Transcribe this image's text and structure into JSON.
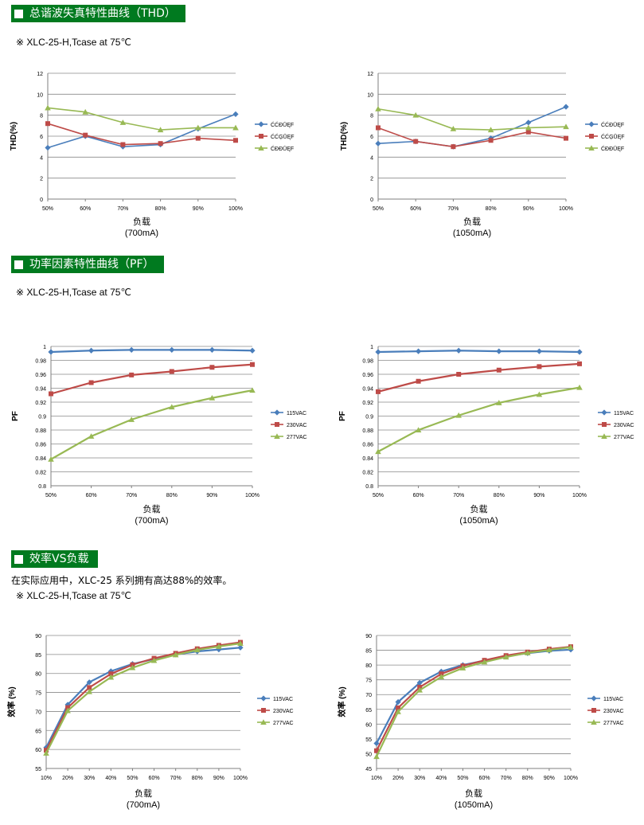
{
  "sections": [
    {
      "title": "总谐波失真特性曲线（THD）",
      "note": "※ XLC-25-H,Tcase at 75℃"
    },
    {
      "title": "功率因素特性曲线（PF）",
      "note": "※ XLC-25-H,Tcase at 75℃"
    },
    {
      "title": "效率VS负载",
      "intro": "在实际应用中，XLC-25 系列拥有高达88%的效率。",
      "note": "※ XLC-25-H,Tcase at 75℃"
    }
  ],
  "chart_data": [
    {
      "type": "line",
      "title": "",
      "ylabel": "THD(%)",
      "xlabel": "负载",
      "xlabel2": "(700mA)",
      "categories": [
        "50%",
        "60%",
        "70%",
        "80%",
        "90%",
        "100%"
      ],
      "ylim": [
        0,
        12
      ],
      "yticks": [
        "0",
        "2",
        "4",
        "6",
        "8",
        "10",
        "12"
      ],
      "grid": true,
      "legend": "right",
      "series": [
        {
          "name": "ĆĆĐŪĘF",
          "color": "#4a7ebb",
          "marker": "diamond",
          "values": [
            4.9,
            6.0,
            5.0,
            5.2,
            6.7,
            8.1
          ]
        },
        {
          "name": "ĆĆĢŪĘF",
          "color": "#be4b48",
          "marker": "square",
          "values": [
            7.2,
            6.1,
            5.2,
            5.3,
            5.8,
            5.6
          ]
        },
        {
          "name": "ĆĐĐŪĘF",
          "color": "#98b954",
          "marker": "triangle",
          "values": [
            8.7,
            8.3,
            7.3,
            6.6,
            6.8,
            6.8
          ]
        }
      ]
    },
    {
      "type": "line",
      "title": "",
      "ylabel": "THD(%)",
      "xlabel": "负载",
      "xlabel2": "(1050mA)",
      "categories": [
        "50%",
        "60%",
        "70%",
        "80%",
        "90%",
        "100%"
      ],
      "ylim": [
        0,
        12
      ],
      "yticks": [
        "0",
        "2",
        "4",
        "6",
        "8",
        "10",
        "12"
      ],
      "grid": true,
      "legend": "right",
      "series": [
        {
          "name": "ĆĆĐŪĘF",
          "color": "#4a7ebb",
          "marker": "diamond",
          "values": [
            5.3,
            5.5,
            5.0,
            5.8,
            7.3,
            8.8
          ]
        },
        {
          "name": "ĆĆĢŪĘF",
          "color": "#be4b48",
          "marker": "square",
          "values": [
            6.8,
            5.5,
            5.0,
            5.6,
            6.4,
            5.8
          ]
        },
        {
          "name": "ĆĐĐŪĘF",
          "color": "#98b954",
          "marker": "triangle",
          "values": [
            8.6,
            8.0,
            6.7,
            6.6,
            6.8,
            6.9
          ]
        }
      ]
    },
    {
      "type": "line",
      "title": "",
      "ylabel": "PF",
      "xlabel": "负载",
      "xlabel2": "(700mA)",
      "categories": [
        "50%",
        "60%",
        "70%",
        "80%",
        "90%",
        "100%"
      ],
      "ylim": [
        0.8,
        1
      ],
      "yticks": [
        "0.8",
        "0.82",
        "0.84",
        "0.86",
        "0.88",
        "0.9",
        "0.92",
        "0.94",
        "0.96",
        "0.98",
        "1"
      ],
      "grid": true,
      "legend": "right",
      "series": [
        {
          "name": "115VAC",
          "color": "#4a7ebb",
          "marker": "diamond",
          "values": [
            0.992,
            0.994,
            0.995,
            0.995,
            0.995,
            0.994
          ]
        },
        {
          "name": "230VAC",
          "color": "#be4b48",
          "marker": "square",
          "values": [
            0.932,
            0.948,
            0.959,
            0.964,
            0.97,
            0.974
          ]
        },
        {
          "name": "277VAC",
          "color": "#98b954",
          "marker": "triangle",
          "values": [
            0.838,
            0.871,
            0.895,
            0.913,
            0.926,
            0.937
          ]
        }
      ]
    },
    {
      "type": "line",
      "title": "",
      "ylabel": "PF",
      "xlabel": "负载",
      "xlabel2": "(1050mA)",
      "categories": [
        "50%",
        "60%",
        "70%",
        "80%",
        "90%",
        "100%"
      ],
      "ylim": [
        0.8,
        1
      ],
      "yticks": [
        "0.8",
        "0.82",
        "0.84",
        "0.86",
        "0.88",
        "0.9",
        "0.92",
        "0.94",
        "0.96",
        "0.98",
        "1"
      ],
      "grid": true,
      "legend": "right",
      "series": [
        {
          "name": "115VAC",
          "color": "#4a7ebb",
          "marker": "diamond",
          "values": [
            0.992,
            0.993,
            0.994,
            0.993,
            0.993,
            0.992
          ]
        },
        {
          "name": "230VAC",
          "color": "#be4b48",
          "marker": "square",
          "values": [
            0.935,
            0.95,
            0.96,
            0.966,
            0.971,
            0.975
          ]
        },
        {
          "name": "277VAC",
          "color": "#98b954",
          "marker": "triangle",
          "values": [
            0.849,
            0.88,
            0.901,
            0.919,
            0.931,
            0.941
          ]
        }
      ]
    },
    {
      "type": "line",
      "title": "",
      "ylabel": "效率 (%)",
      "xlabel": "负载",
      "xlabel2": "(700mA)",
      "categories": [
        "10%",
        "20%",
        "30%",
        "40%",
        "50%",
        "60%",
        "70%",
        "80%",
        "90%",
        "100%"
      ],
      "ylim": [
        55,
        90
      ],
      "yticks": [
        "55",
        "60",
        "65",
        "70",
        "75",
        "80",
        "85",
        "90"
      ],
      "grid": true,
      "legend": "right",
      "series": [
        {
          "name": "115VAC",
          "color": "#4a7ebb",
          "marker": "diamond",
          "values": [
            60.5,
            71.8,
            77.7,
            80.6,
            82.5,
            83.8,
            85.0,
            85.8,
            86.3,
            86.8
          ]
        },
        {
          "name": "230VAC",
          "color": "#be4b48",
          "marker": "square",
          "values": [
            59.8,
            71.0,
            76.3,
            79.9,
            82.3,
            84.0,
            85.3,
            86.5,
            87.4,
            88.2
          ]
        },
        {
          "name": "277VAC",
          "color": "#98b954",
          "marker": "triangle",
          "values": [
            59.0,
            70.2,
            75.2,
            79.0,
            81.5,
            83.4,
            84.9,
            86.2,
            87.1,
            87.9
          ]
        }
      ]
    },
    {
      "type": "line",
      "title": "",
      "ylabel": "效率 (%)",
      "xlabel": "负载",
      "xlabel2": "(1050mA)",
      "categories": [
        "10%",
        "20%",
        "30%",
        "40%",
        "50%",
        "60%",
        "70%",
        "80%",
        "90%",
        "100%"
      ],
      "ylim": [
        45,
        90
      ],
      "yticks": [
        "45",
        "50",
        "55",
        "60",
        "65",
        "70",
        "75",
        "80",
        "85",
        "90"
      ],
      "grid": true,
      "legend": "right",
      "series": [
        {
          "name": "115VAC",
          "color": "#4a7ebb",
          "marker": "diamond",
          "values": [
            53.5,
            67.5,
            74.0,
            77.8,
            80.0,
            81.5,
            83.0,
            84.0,
            84.8,
            85.2
          ]
        },
        {
          "name": "230VAC",
          "color": "#be4b48",
          "marker": "square",
          "values": [
            51.0,
            65.5,
            72.5,
            77.0,
            79.7,
            81.6,
            83.2,
            84.4,
            85.4,
            86.2
          ]
        },
        {
          "name": "277VAC",
          "color": "#98b954",
          "marker": "triangle",
          "values": [
            49.0,
            64.2,
            71.5,
            76.0,
            79.0,
            81.0,
            82.7,
            84.1,
            85.1,
            86.0
          ]
        }
      ]
    }
  ]
}
